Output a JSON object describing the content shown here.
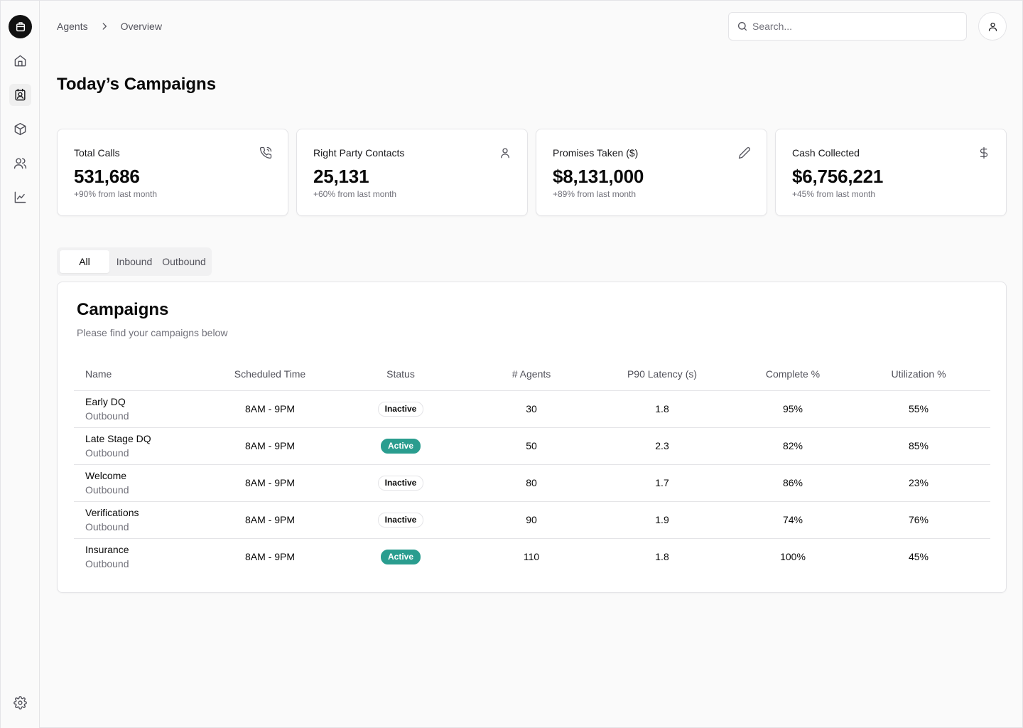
{
  "breadcrumb": {
    "root": "Agents",
    "current": "Overview"
  },
  "search": {
    "placeholder": "Search..."
  },
  "page": {
    "title": "Today’s Campaigns"
  },
  "stats": [
    {
      "label": "Total Calls",
      "value": "531,686",
      "change": "+90% from last month",
      "icon": "phone-icon"
    },
    {
      "label": "Right Party Contacts",
      "value": "25,131",
      "change": "+60% from last month",
      "icon": "user-icon"
    },
    {
      "label": "Promises Taken ($)",
      "value": "$8,131,000",
      "change": "+89% from last month",
      "icon": "pencil-icon"
    },
    {
      "label": "Cash Collected",
      "value": "$6,756,221",
      "change": "+45% from last month",
      "icon": "dollar-icon"
    }
  ],
  "tabs": [
    {
      "label": "All",
      "active": true
    },
    {
      "label": "Inbound",
      "active": false
    },
    {
      "label": "Outbound",
      "active": false
    }
  ],
  "campaigns": {
    "title": "Campaigns",
    "subtitle": "Please find your campaigns below",
    "columns": [
      "Name",
      "Scheduled Time",
      "Status",
      "# Agents",
      "P90 Latency (s)",
      "Complete %",
      "Utilization %"
    ],
    "rows": [
      {
        "name": "Early DQ",
        "type": "Outbound",
        "time": "8AM - 9PM",
        "status": "Inactive",
        "agents": "30",
        "latency": "1.8",
        "complete": "95%",
        "utilization": "55%"
      },
      {
        "name": "Late Stage DQ",
        "type": "Outbound",
        "time": "8AM - 9PM",
        "status": "Active",
        "agents": "50",
        "latency": "2.3",
        "complete": "82%",
        "utilization": "85%"
      },
      {
        "name": "Welcome",
        "type": "Outbound",
        "time": "8AM - 9PM",
        "status": "Inactive",
        "agents": "80",
        "latency": "1.7",
        "complete": "86%",
        "utilization": "23%"
      },
      {
        "name": "Verifications",
        "type": "Outbound",
        "time": "8AM - 9PM",
        "status": "Inactive",
        "agents": "90",
        "latency": "1.9",
        "complete": "74%",
        "utilization": "76%"
      },
      {
        "name": "Insurance",
        "type": "Outbound",
        "time": "8AM - 9PM",
        "status": "Active",
        "agents": "110",
        "latency": "1.8",
        "complete": "100%",
        "utilization": "45%"
      }
    ]
  },
  "colors": {
    "active_badge": "#2a9d8f",
    "logo_bg": "#111111"
  },
  "sidebar": {
    "items": [
      {
        "name": "home-icon",
        "active": false
      },
      {
        "name": "contact-card-icon",
        "active": true
      },
      {
        "name": "package-icon",
        "active": false
      },
      {
        "name": "users-icon",
        "active": false
      },
      {
        "name": "chart-line-icon",
        "active": false
      }
    ],
    "footer": "gear-icon"
  }
}
